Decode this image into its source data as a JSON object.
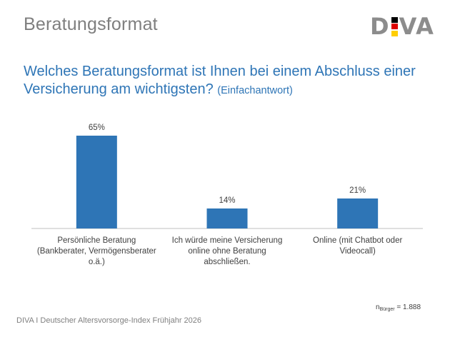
{
  "header": {
    "title": "Beratungsformat",
    "logo": {
      "left": "D",
      "right": "VA",
      "flag_colors": [
        "#000000",
        "#dd0000",
        "#ffce00"
      ]
    }
  },
  "question": {
    "main": "Welches Beratungsformat ist Ihnen bei einem Abschluss einer Versicherung am wichtigsten?",
    "sub": "(Einfachantwort)"
  },
  "chart_data": {
    "type": "bar",
    "categories": [
      [
        "Persönliche Beratung",
        "(Bankberater, Vermögensberater",
        "o.ä.)"
      ],
      [
        "Ich würde meine Versicherung",
        "online ohne Beratung",
        "abschließen."
      ],
      [
        "Online (mit Chatbot oder",
        "Videocall)"
      ]
    ],
    "values": [
      65,
      14,
      21
    ],
    "value_labels": [
      "65%",
      "14%",
      "21%"
    ],
    "ylim": [
      0,
      70
    ],
    "bar_color": "#2e75b6",
    "grid": false
  },
  "sample": {
    "prefix": "n",
    "sub": "Bürger",
    "suffix": " = 1.888"
  },
  "footer": "DIVA I Deutscher Altersvorsorge-Index Frühjahr 2026"
}
